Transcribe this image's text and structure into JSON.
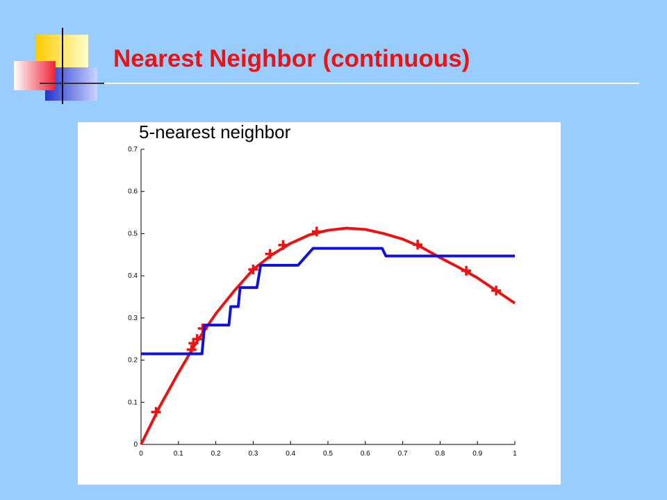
{
  "slide": {
    "title": "Nearest Neighbor (continuous)"
  },
  "chart_data": {
    "type": "line",
    "title": "5-nearest neighbor",
    "xlim": [
      0,
      1
    ],
    "xticks": [
      0,
      0.1,
      0.2,
      0.3,
      0.4,
      0.5,
      0.6,
      0.7,
      0.8,
      0.9,
      1
    ],
    "ylim": [
      0,
      0.7
    ],
    "yticks": [
      0,
      0.1,
      0.2,
      0.3,
      0.4,
      0.5,
      0.6,
      0.7
    ],
    "grid": false,
    "series": [
      {
        "color": "#ee1111",
        "x": [
          0,
          0.05,
          0.1,
          0.15,
          0.2,
          0.25,
          0.3,
          0.35,
          0.4,
          0.45,
          0.5,
          0.55,
          0.6,
          0.65,
          0.7,
          0.75,
          0.8,
          0.85,
          0.9,
          0.95,
          1
        ],
        "values": [
          0,
          0.09,
          0.17,
          0.245,
          0.31,
          0.365,
          0.415,
          0.45,
          0.477,
          0.497,
          0.508,
          0.513,
          0.51,
          0.5,
          0.487,
          0.468,
          0.443,
          0.42,
          0.395,
          0.365,
          0.335
        ]
      },
      {
        "color": "#ee1111",
        "marker": "+",
        "x": [
          0.04,
          0.135,
          0.14,
          0.15,
          0.165,
          0.3,
          0.345,
          0.38,
          0.47,
          0.74,
          0.87,
          0.95
        ],
        "values": [
          0.077,
          0.225,
          0.24,
          0.25,
          0.275,
          0.415,
          0.452,
          0.473,
          0.505,
          0.474,
          0.412,
          0.365
        ]
      },
      {
        "color": "#1111dd",
        "x": [
          0,
          0.163,
          0.17,
          0.235,
          0.24,
          0.26,
          0.265,
          0.31,
          0.32,
          0.42,
          0.46,
          0.645,
          0.655,
          1
        ],
        "values": [
          0.215,
          0.215,
          0.283,
          0.283,
          0.327,
          0.327,
          0.372,
          0.372,
          0.425,
          0.425,
          0.465,
          0.465,
          0.447,
          0.447
        ]
      }
    ]
  }
}
